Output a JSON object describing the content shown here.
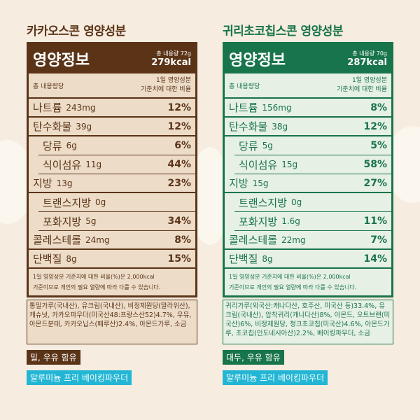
{
  "panels": [
    {
      "heading": "카카오스콘 영양성분",
      "color": "#5b3418",
      "light": "#ecdcc8",
      "label": {
        "title": "영양정보",
        "serving": "총 내용량 72g",
        "kcal": "279kcal",
        "header_left": "총 내용량당",
        "header_right": [
          "1일 영양성분",
          "기준치에 대한 비율"
        ],
        "rows": [
          {
            "name": "나트륨",
            "amount": "243mg",
            "percent": "12%",
            "sub": false
          },
          {
            "name": "탄수화물",
            "amount": "39g",
            "percent": "12%",
            "sub": false
          },
          {
            "name": "당류",
            "amount": "6g",
            "percent": "6%",
            "sub": true
          },
          {
            "name": "식이섬유",
            "amount": "11g",
            "percent": "44%",
            "sub": true
          },
          {
            "name": "지방",
            "amount": "13g",
            "percent": "23%",
            "sub": false
          },
          {
            "name": "트랜스지방",
            "amount": "0g",
            "sub": true
          },
          {
            "name": "포화지방",
            "amount": "5g",
            "percent": "34%",
            "sub": true
          },
          {
            "name": "콜레스테롤",
            "amount": "24mg",
            "percent": "8%",
            "sub": false
          },
          {
            "name": "단백질",
            "amount": "8g",
            "percent": "15%",
            "sub": false
          }
        ],
        "note": [
          "1일 영양성분 기준치에 대한 비율(%)은 2,000kcal",
          "기준이므로 개인의 필요 열량에 따라 다를 수 있습니다."
        ]
      },
      "ingredients": "통밀가루(국내산), 유크림(국내산), 비정제원당(말라위산), 캐슈넛, 카카오파우더(미국산48:프랑스산52)4.7%, 우유, 아몬드분태, 카카오닙스(페루산)2.4%, 아몬드가루, 소금",
      "allergen": "밀, 우유 함유",
      "badge": "알루미늄 프리 베이킹파우더"
    },
    {
      "heading": "귀리초코칩스콘 영양성분",
      "color": "#18744a",
      "light": "#e6f0e4",
      "label": {
        "title": "영양정보",
        "serving": "총 내용량 70g",
        "kcal": "287kcal",
        "header_left": "총 내용량당",
        "header_right": [
          "1일 영양성분",
          "기준치에 대한 비율"
        ],
        "rows": [
          {
            "name": "나트륨",
            "amount": "156mg",
            "percent": "8%",
            "sub": false
          },
          {
            "name": "탄수화물",
            "amount": "38g",
            "percent": "12%",
            "sub": false
          },
          {
            "name": "당류",
            "amount": "5g",
            "percent": "5%",
            "sub": true
          },
          {
            "name": "식이섬유",
            "amount": "15g",
            "percent": "58%",
            "sub": true
          },
          {
            "name": "지방",
            "amount": "15g",
            "percent": "27%",
            "sub": false
          },
          {
            "name": "트랜스지방",
            "amount": "0g",
            "sub": true
          },
          {
            "name": "포화지방",
            "amount": "1.6g",
            "percent": "11%",
            "sub": true
          },
          {
            "name": "콜레스테롤",
            "amount": "22mg",
            "percent": "7%",
            "sub": false
          },
          {
            "name": "단백질",
            "amount": "8g",
            "percent": "14%",
            "sub": false
          }
        ],
        "note": [
          "1일 영양성분 기준치에 대한 비율(%)은 2,000kcal",
          "기준이므로 개인의 필요 열량에 따라 다를 수 있습니다."
        ]
      },
      "ingredients": "귀리가루(외국산:캐나다산, 호주산, 미국산 등)33.4%, 유크림(국내산), 압착귀리(캐나다산)8%, 아몬드, 오트브랜(미국산)6%, 비정제원당, 청크초코칩(미국산)4.6%, 아몬드가루, 초코칩(인도네시아산)2.2%, 베이킹파우더, 소금",
      "allergen": "대두, 우유 함유",
      "badge": "알루미늄 프리 베이킹파우더"
    }
  ]
}
